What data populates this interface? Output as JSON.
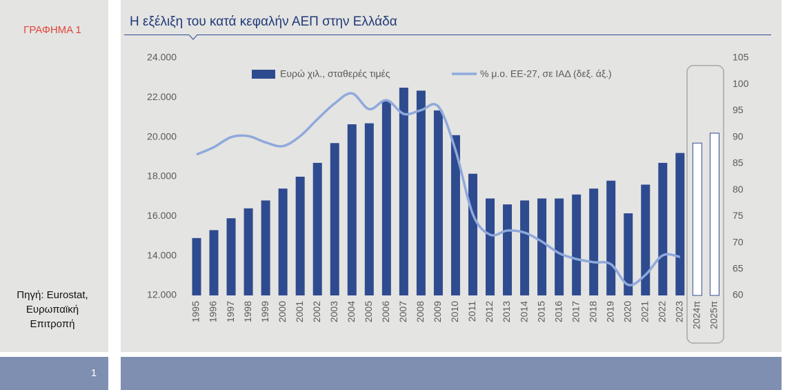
{
  "label": "ΓΡΑΦΗΜΑ 1",
  "source": [
    "Πηγή: Eurostat,",
    "Ευρωπαϊκή",
    "Επιτροπή"
  ],
  "page_number": "1",
  "chart_data": {
    "type": "bar",
    "title": "Η εξέλιξη του κατά κεφαλήν ΑΕΠ στην Ελλάδα",
    "categories": [
      "1995",
      "1996",
      "1997",
      "1998",
      "1999",
      "2000",
      "2001",
      "2002",
      "2003",
      "2004",
      "2005",
      "2006",
      "2007",
      "2008",
      "2009",
      "2010",
      "2011",
      "2012",
      "2013",
      "2014",
      "2015",
      "2016",
      "2017",
      "2018",
      "2019",
      "2020",
      "2021",
      "2022",
      "2023",
      "2024π",
      "2025π"
    ],
    "series": [
      {
        "name": "Ευρώ χιλ., σταθερές τιμές",
        "type": "bar",
        "color": "#2f4b8f",
        "values": [
          14900,
          15300,
          15900,
          16400,
          16800,
          17400,
          18000,
          18700,
          19700,
          20650,
          20700,
          21850,
          22500,
          22350,
          21350,
          20100,
          18150,
          16900,
          16600,
          16800,
          16900,
          16900,
          17100,
          17400,
          17800,
          16150,
          17600,
          18700,
          19200,
          null,
          null
        ]
      },
      {
        "name": "% μ.ο. ΕΕ-27, σε ΙΑΔ (δεξ. άξ.)",
        "type": "line",
        "color": "#8fa9dc",
        "axis": "y2",
        "values": [
          86.7,
          88.1,
          90.0,
          90.2,
          89.0,
          88.3,
          90.2,
          93.4,
          96.4,
          98.3,
          95.3,
          97.0,
          94.4,
          95.1,
          95.8,
          87.5,
          75.4,
          71.5,
          72.3,
          71.9,
          70.2,
          68.0,
          66.9,
          66.3,
          65.9,
          62.0,
          63.9,
          67.6,
          67.3,
          null,
          null
        ]
      },
      {
        "type": "bar",
        "color": "#2f4b8f",
        "fill": "#ffffff",
        "values": [
          null,
          null,
          null,
          null,
          null,
          null,
          null,
          null,
          null,
          null,
          null,
          null,
          null,
          null,
          null,
          null,
          null,
          null,
          null,
          null,
          null,
          null,
          null,
          null,
          null,
          null,
          null,
          null,
          null,
          19700,
          20200
        ]
      }
    ],
    "ylim": [
      12000,
      24000
    ],
    "yticks": [
      {
        "value": 12000,
        "label": "12.000"
      },
      {
        "value": 14000,
        "label": "14.000"
      },
      {
        "value": 16000,
        "label": "16.000"
      },
      {
        "value": 18000,
        "label": "18.000"
      },
      {
        "value": 20000,
        "label": "20.000"
      },
      {
        "value": 22000,
        "label": "22.000"
      },
      {
        "value": 24000,
        "label": "24.000"
      }
    ],
    "y2lim": [
      60,
      105
    ],
    "y2ticks": [
      60,
      65,
      70,
      75,
      80,
      85,
      90,
      95,
      100,
      105
    ],
    "grid": false
  }
}
